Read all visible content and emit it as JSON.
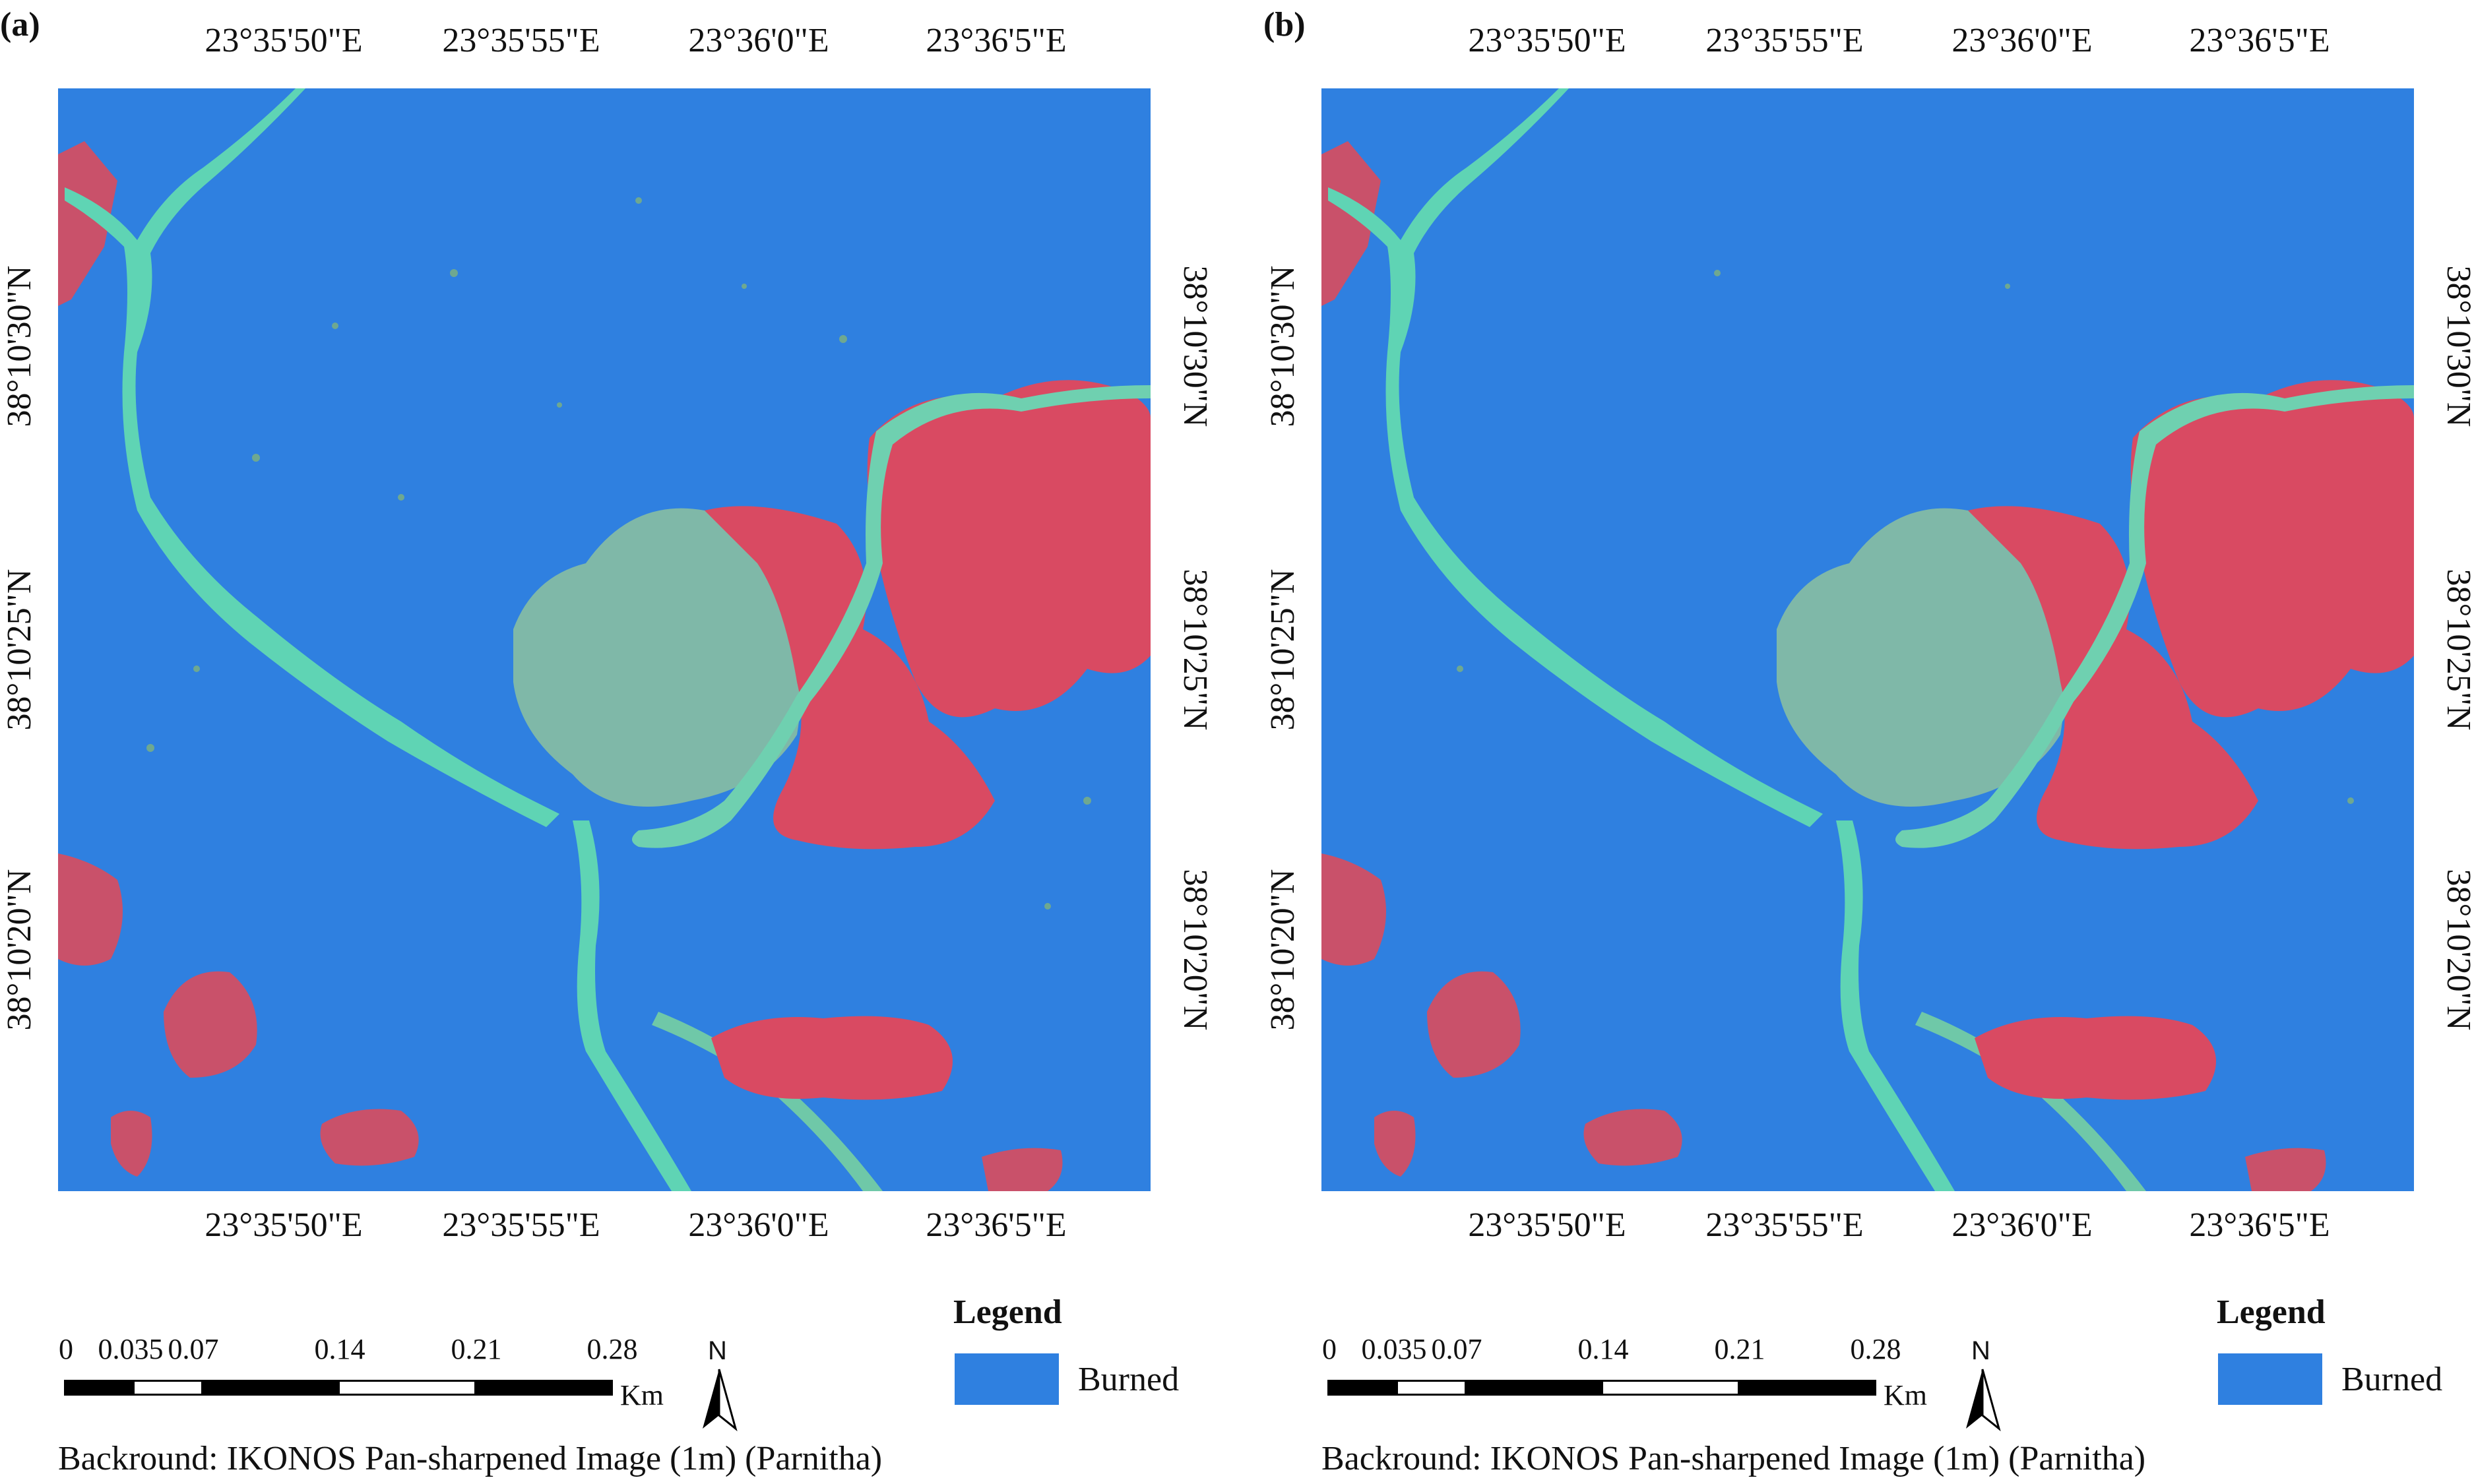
{
  "colors": {
    "burned": "#2f80e0",
    "vegetation": "#d94a62",
    "grass": "#5fd4b4",
    "soil": "#7fa89c"
  },
  "panels": [
    {
      "label": "(a)",
      "top_ticks": [
        "23°35'50\"E",
        "23°35'55\"E",
        "23°36'0\"E",
        "23°36'5\"E"
      ],
      "bottom_ticks": [
        "23°35'50\"E",
        "23°35'55\"E",
        "23°36'0\"E",
        "23°36'5\"E"
      ],
      "left_ticks": [
        "38°10'30\"N",
        "38°10'25\"N",
        "38°10'20\"N"
      ],
      "right_ticks": [
        "38°10'30\"N",
        "38°10'25\"N",
        "38°10'20\"N"
      ],
      "legend": {
        "title": "Legend",
        "item": "Burned"
      },
      "scale": {
        "labels": [
          "0",
          "0.035",
          "0.07",
          "0.14",
          "0.21",
          "0.28"
        ],
        "unit": "Km"
      },
      "north": "N",
      "caption": "Backround: IKONOS Pan-sharpened Image (1m) (Parnitha)"
    },
    {
      "label": "(b)",
      "top_ticks": [
        "23°35'50\"E",
        "23°35'55\"E",
        "23°36'0\"E",
        "23°36'5\"E"
      ],
      "bottom_ticks": [
        "23°35'50\"E",
        "23°35'55\"E",
        "23°36'0\"E",
        "23°36'5\"E"
      ],
      "left_ticks": [
        "38°10'30\"N",
        "38°10'25\"N",
        "38°10'20\"N"
      ],
      "right_ticks": [
        "38°10'30\"N",
        "38°10'25\"N",
        "38°10'20\"N"
      ],
      "legend": {
        "title": "Legend",
        "item": "Burned"
      },
      "scale": {
        "labels": [
          "0",
          "0.035",
          "0.07",
          "0.14",
          "0.21",
          "0.28"
        ],
        "unit": "Km"
      },
      "north": "N",
      "caption": "Backround: IKONOS Pan-sharpened Image (1m) (Parnitha)"
    }
  ]
}
